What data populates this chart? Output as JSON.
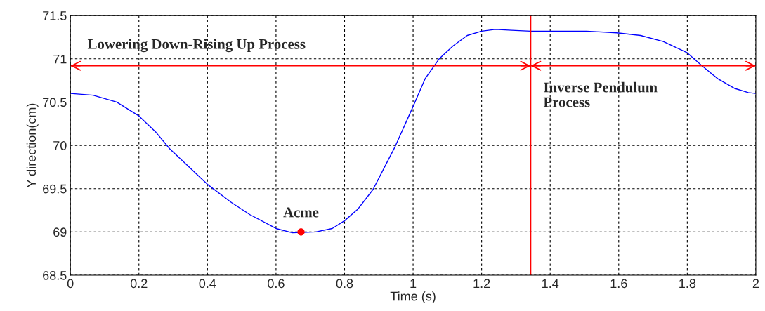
{
  "chart_data": {
    "type": "line",
    "xlabel": "Time (s)",
    "ylabel": "Y direction(cm)",
    "xlim": [
      0,
      2
    ],
    "ylim": [
      68.5,
      71.5
    ],
    "xticks": [
      0,
      0.2,
      0.4,
      0.6,
      0.8,
      1,
      1.2,
      1.4,
      1.6,
      1.8,
      2
    ],
    "yticks": [
      68.5,
      69,
      69.5,
      70,
      70.5,
      71,
      71.5
    ],
    "grid": true,
    "marker": "none",
    "line_style": "solid",
    "series": [
      {
        "color": "#0000ff",
        "x": [
          0,
          0.066,
          0.135,
          0.2,
          0.25,
          0.29,
          0.333,
          0.4,
          0.47,
          0.524,
          0.6,
          0.648,
          0.716,
          0.764,
          0.8,
          0.838,
          0.883,
          0.948,
          1.0,
          1.035,
          1.076,
          1.117,
          1.158,
          1.2,
          1.24,
          1.288,
          1.343,
          1.506,
          1.595,
          1.664,
          1.73,
          1.8,
          1.84,
          1.889,
          1.937,
          1.978,
          2.0
        ],
        "values": [
          70.6,
          70.58,
          70.5,
          70.34,
          70.15,
          69.96,
          69.8,
          69.55,
          69.34,
          69.2,
          69.04,
          68.99,
          69.0,
          69.04,
          69.13,
          69.26,
          69.49,
          69.99,
          70.45,
          70.77,
          71.0,
          71.15,
          71.27,
          71.32,
          71.34,
          71.33,
          71.32,
          71.32,
          71.3,
          71.27,
          71.2,
          71.07,
          70.93,
          70.77,
          70.66,
          70.61,
          70.6
        ]
      },
      {
        "type": "scatter",
        "color": "#ff0000",
        "marker": "circle",
        "x": [
          0.673
        ],
        "values": [
          69.0
        ]
      }
    ],
    "ref_lines": [
      {
        "axis": "x",
        "value": 1.343,
        "color": "#ff0000",
        "line_style": "solid"
      },
      {
        "axis": "y",
        "value": 70.92,
        "color": "#ff0000",
        "line_style": "solid"
      }
    ],
    "annotations": [
      "Lowering Down-Rising Up Process",
      "Inverse Pendulum\nProcess",
      {
        "text": "Acme",
        "x": 0.673,
        "y": 69.0
      }
    ]
  }
}
